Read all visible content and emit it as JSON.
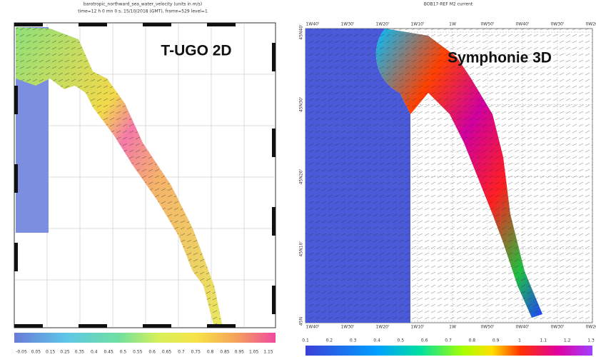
{
  "left_panel": {
    "title": "barotropic_northward_sea_water_velocity (units in m/s)",
    "subtitle": "time=12 h  0 mn  0 s, 15/10/2018 (GMT), frame=529 level=1",
    "label": "T-UGO 2D",
    "colorbar_labels": [
      "-0.05",
      "0.05",
      "0.15",
      "0.25",
      "0.35",
      "0.4",
      "0.45",
      "0.5",
      "0.55",
      "0.6",
      "0.65",
      "0.7",
      "0.75",
      "0.8",
      "0.85",
      "0.95",
      "1.05",
      "1.15"
    ]
  },
  "right_panel": {
    "title": "BOB17-REF M2 current",
    "label": "Symphonie 3D",
    "lon_labels": [
      "1W40'",
      "1W30'",
      "1W20'",
      "1W10'",
      "1W",
      "0W50'",
      "0W40'",
      "0W30'",
      "0W20'"
    ],
    "lat_labels": [
      "45N40'",
      "45N30'",
      "45N20'",
      "45N10'",
      "45N"
    ],
    "colorbar_labels": [
      "0.1",
      "0.2",
      "0.3",
      "0.4",
      "0.5",
      "0.6",
      "0.7",
      "0.8",
      "0.9",
      "1",
      "1.1",
      "1.2",
      "1.3"
    ]
  }
}
